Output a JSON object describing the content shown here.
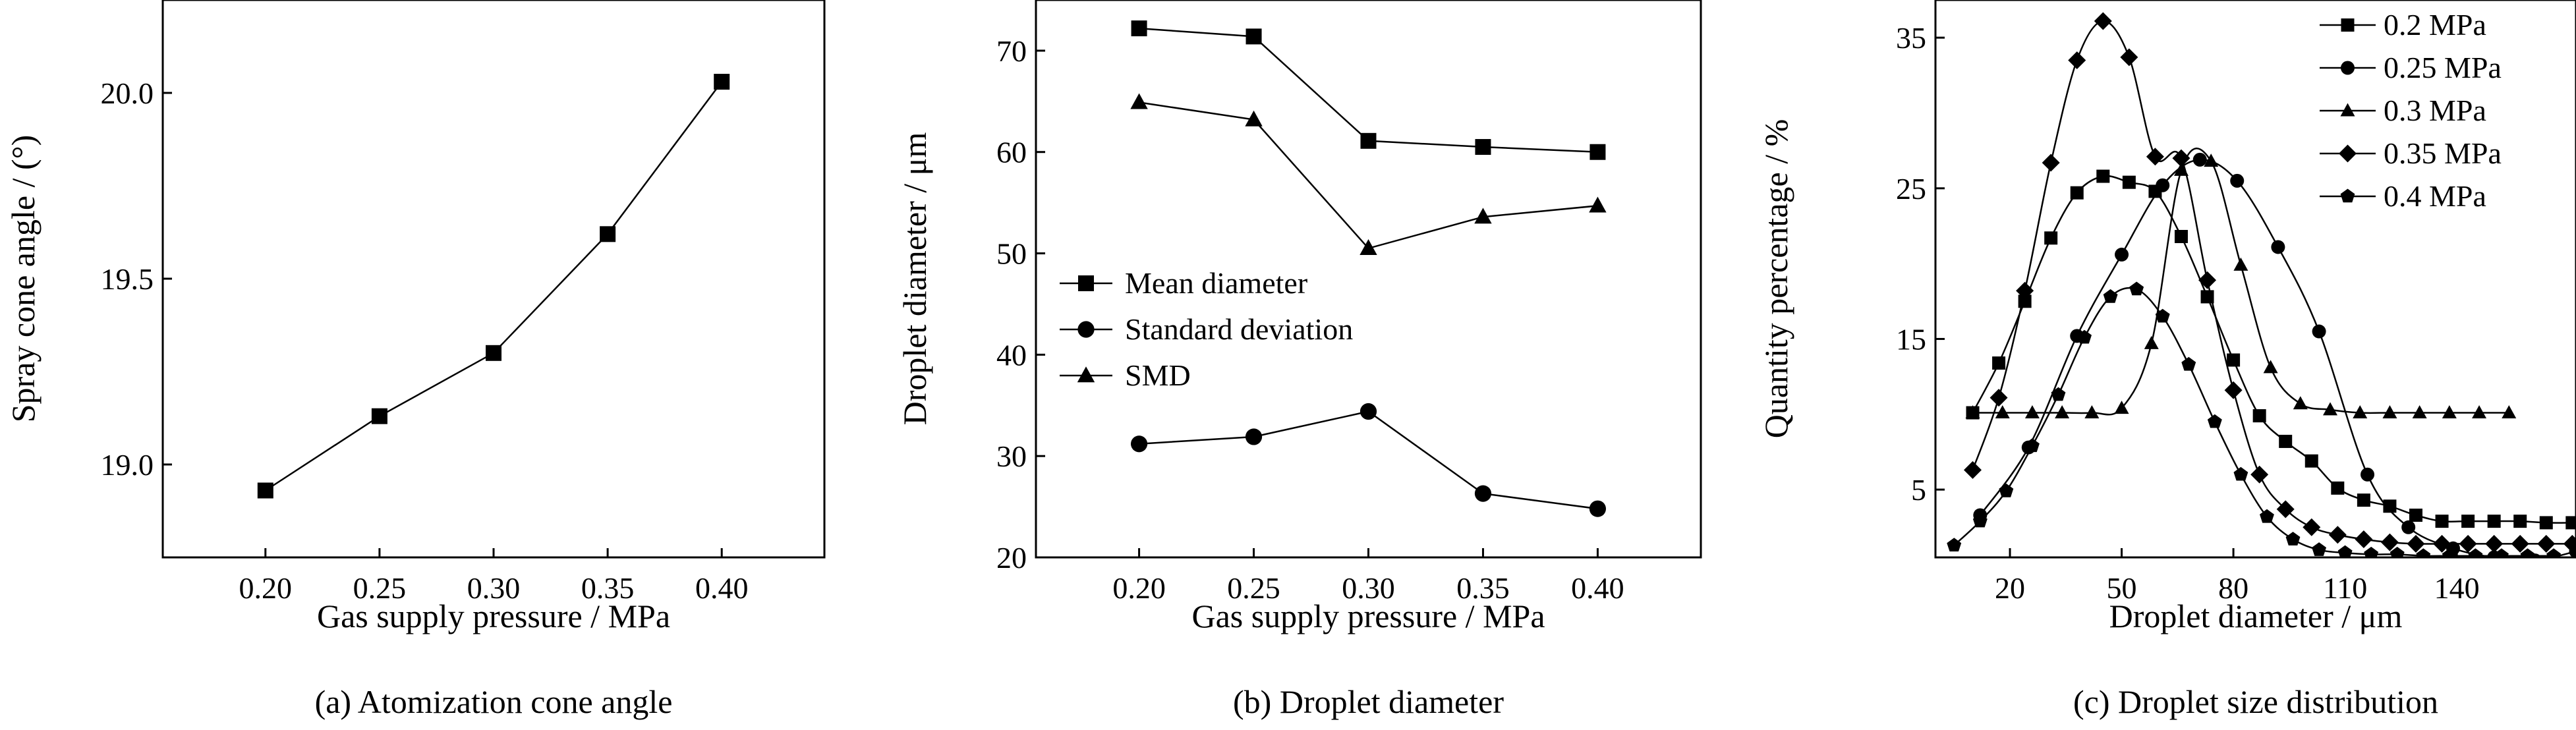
{
  "chart_data": [
    {
      "type": "line",
      "caption": "(a) Atomization cone angle",
      "xlabel": "Gas supply pressure / MPa",
      "ylabel": "Spray cone angle / (°)",
      "xlim": [
        0.155,
        0.445
      ],
      "ylim": [
        18.75,
        20.25
      ],
      "xticks": [
        "0.20",
        "0.25",
        "0.30",
        "0.35",
        "0.40"
      ],
      "yticks": [
        "19.0",
        "19.5",
        "20.0"
      ],
      "series": [
        {
          "marker": "square",
          "x": [
            0.2,
            0.25,
            0.3,
            0.35,
            0.4
          ],
          "y": [
            18.93,
            19.13,
            19.3,
            19.62,
            20.03
          ]
        }
      ]
    },
    {
      "type": "line",
      "caption": "(b) Droplet diameter",
      "xlabel": "Gas supply pressure / MPa",
      "ylabel": "Droplet diameter / μm",
      "xlim": [
        0.155,
        0.445
      ],
      "ylim": [
        20,
        75
      ],
      "xticks": [
        "0.20",
        "0.25",
        "0.30",
        "0.35",
        "0.40"
      ],
      "yticks": [
        "20",
        "30",
        "40",
        "50",
        "60",
        "70"
      ],
      "legend_position": "center-left",
      "series": [
        {
          "name": "Mean diameter",
          "marker": "square",
          "x": [
            0.2,
            0.25,
            0.3,
            0.35,
            0.4
          ],
          "y": [
            72.2,
            71.4,
            61.1,
            60.5,
            60.0
          ]
        },
        {
          "name": "Standard deviation",
          "marker": "circle",
          "x": [
            0.2,
            0.25,
            0.3,
            0.35,
            0.4
          ],
          "y": [
            31.2,
            31.9,
            34.4,
            26.3,
            24.8
          ]
        },
        {
          "name": "SMD",
          "marker": "triangle",
          "x": [
            0.2,
            0.25,
            0.3,
            0.35,
            0.4
          ],
          "y": [
            64.9,
            63.2,
            50.5,
            53.6,
            54.7
          ]
        }
      ]
    },
    {
      "type": "line",
      "caption": "(c) Droplet size distribution",
      "xlabel": "Droplet diameter / μm",
      "ylabel": "Quantity percentage / %",
      "xlim": [
        0,
        172
      ],
      "ylim": [
        0.5,
        37.5
      ],
      "xticks": [
        "20",
        "50",
        "80",
        "110",
        "140"
      ],
      "yticks": [
        "5",
        "15",
        "25",
        "35"
      ],
      "legend_position": "top-right",
      "series": [
        {
          "name": "0.2 MPa",
          "marker": "square",
          "x": [
            10,
            17,
            24,
            31,
            38,
            45,
            52,
            59,
            66,
            73,
            80,
            87,
            94,
            101,
            108,
            115,
            122,
            129,
            136,
            143,
            150,
            157,
            164,
            171
          ],
          "y": [
            10.1,
            13.4,
            17.5,
            21.7,
            24.7,
            25.8,
            25.4,
            24.8,
            21.8,
            17.8,
            13.6,
            9.9,
            8.2,
            6.9,
            5.1,
            4.3,
            3.9,
            3.3,
            2.9,
            2.9,
            2.9,
            2.9,
            2.8,
            2.8
          ]
        },
        {
          "name": "0.25 MPa",
          "marker": "circle",
          "x": [
            12,
            25,
            38,
            50,
            61,
            71,
            81,
            92,
            103,
            116,
            127,
            139,
            150,
            161,
            172
          ],
          "y": [
            3.3,
            7.8,
            15.2,
            20.6,
            25.2,
            26.9,
            25.5,
            21.1,
            15.5,
            6.0,
            2.5,
            1.1,
            0.5,
            0.3,
            0.9
          ]
        },
        {
          "name": "0.3 MPa",
          "marker": "triangle",
          "x": [
            10,
            18,
            26,
            34,
            42,
            50,
            58,
            66,
            74,
            82,
            90,
            98,
            106,
            114,
            122,
            130,
            138,
            146,
            154
          ],
          "y": [
            10.1,
            10.1,
            10.1,
            10.1,
            10.1,
            10.4,
            14.7,
            26.2,
            26.8,
            19.9,
            13.1,
            10.7,
            10.3,
            10.1,
            10.1,
            10.1,
            10.1,
            10.1,
            10.1
          ]
        },
        {
          "name": "0.35 MPa",
          "marker": "diamond",
          "x": [
            10,
            17,
            24,
            31,
            38,
            45,
            52,
            59,
            66,
            73,
            80,
            87,
            94,
            101,
            108,
            115,
            122,
            129,
            136,
            143,
            150,
            157,
            164,
            171
          ],
          "y": [
            6.3,
            11.1,
            18.2,
            26.7,
            33.5,
            36.1,
            33.7,
            27.1,
            27.0,
            18.9,
            11.6,
            6.0,
            3.7,
            2.5,
            2.0,
            1.7,
            1.5,
            1.4,
            1.4,
            1.4,
            1.4,
            1.4,
            1.4,
            1.4
          ]
        },
        {
          "name": "0.4 MPa",
          "marker": "pentagon",
          "x": [
            5,
            12,
            19,
            26,
            33,
            40,
            47,
            54,
            61,
            68,
            75,
            82,
            89,
            96,
            103,
            110,
            117,
            124,
            131,
            138,
            145,
            152,
            159,
            166
          ],
          "y": [
            1.3,
            2.9,
            4.9,
            7.9,
            11.3,
            15.1,
            17.8,
            18.3,
            16.5,
            13.3,
            9.5,
            6.0,
            3.2,
            1.7,
            1.0,
            0.8,
            0.7,
            0.7,
            0.6,
            0.6,
            0.6,
            0.6,
            0.6,
            0.6
          ]
        }
      ]
    }
  ]
}
